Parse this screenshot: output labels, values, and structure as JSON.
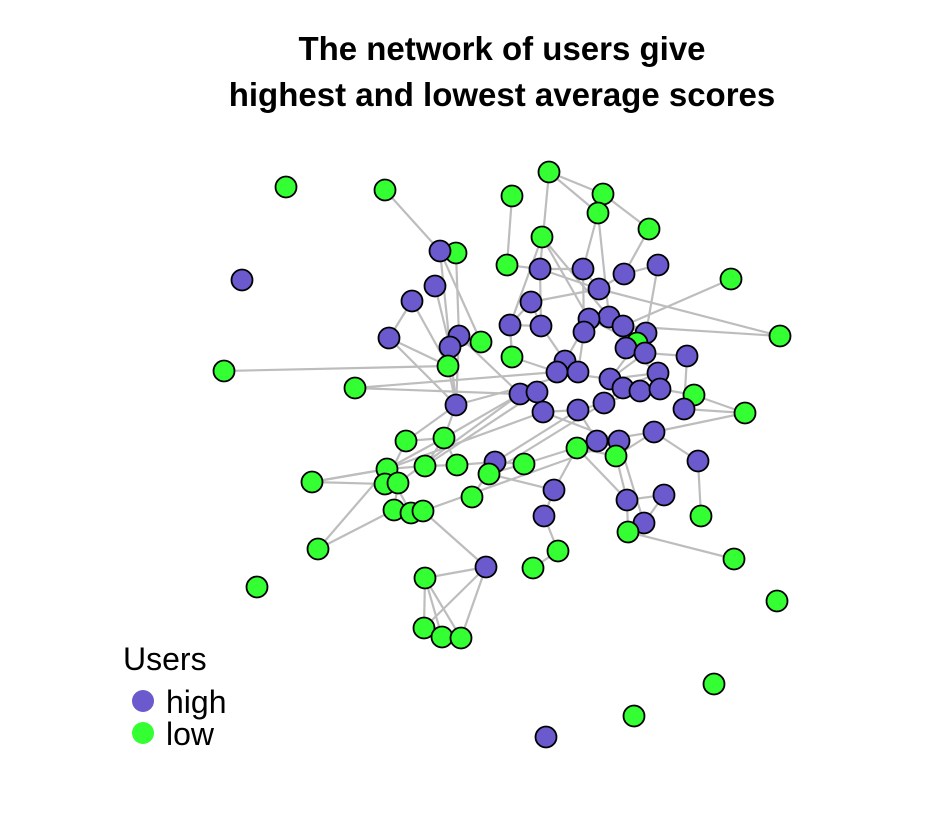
{
  "figure": {
    "title_lines": [
      "The network of users give",
      "highest and lowest average scores"
    ]
  },
  "legend": {
    "title": "Users",
    "items": [
      {
        "label": "high",
        "color": "#6a5acd"
      },
      {
        "label": "low",
        "color": "#33ff33"
      }
    ]
  },
  "colors": {
    "high": "#6a5acd",
    "low": "#33ff33",
    "edge": "#bdbdbd",
    "node_outline": "#000000"
  },
  "chart_data": {
    "type": "network",
    "groups": [
      "high",
      "low"
    ]
  }
}
